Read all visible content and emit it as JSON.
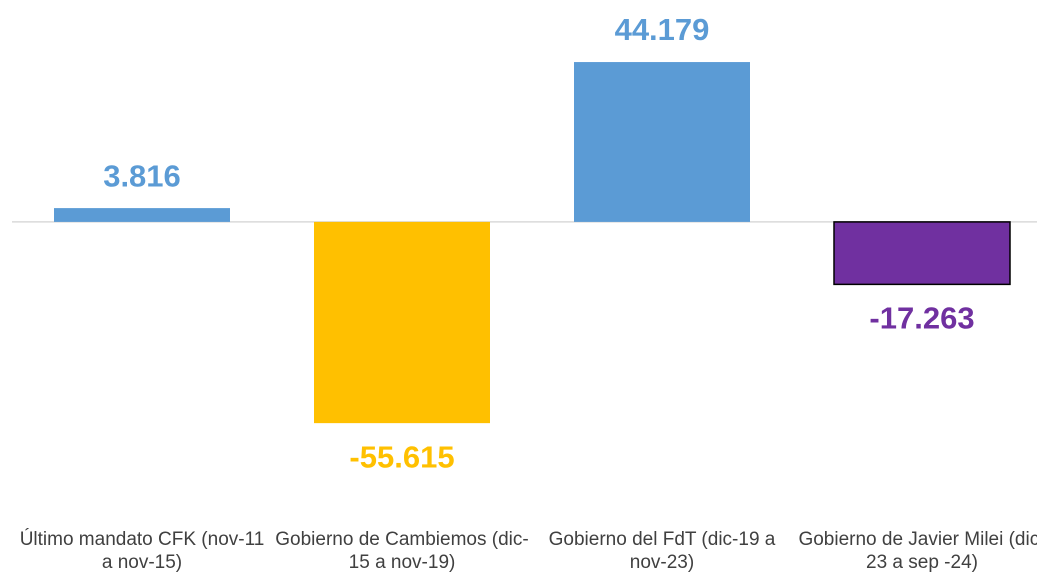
{
  "chart_data": {
    "type": "bar",
    "categories": [
      "Último mandato CFK (nov-11 a nov-15)",
      "Gobierno de Cambiemos (dic-15 a nov-19)",
      "Gobierno del FdT (dic-19 a nov-23)",
      "Gobierno de Javier Milei (dic-23 a sep -24)"
    ],
    "values": [
      3816,
      -55615,
      44179,
      -17263
    ],
    "value_labels": [
      "3.816",
      "-55.615",
      "44.179",
      "-17.263"
    ],
    "colors": [
      "#5b9bd5",
      "#ffc000",
      "#5b9bd5",
      "#7030a0"
    ],
    "ylim": [
      -60000,
      50000
    ]
  }
}
